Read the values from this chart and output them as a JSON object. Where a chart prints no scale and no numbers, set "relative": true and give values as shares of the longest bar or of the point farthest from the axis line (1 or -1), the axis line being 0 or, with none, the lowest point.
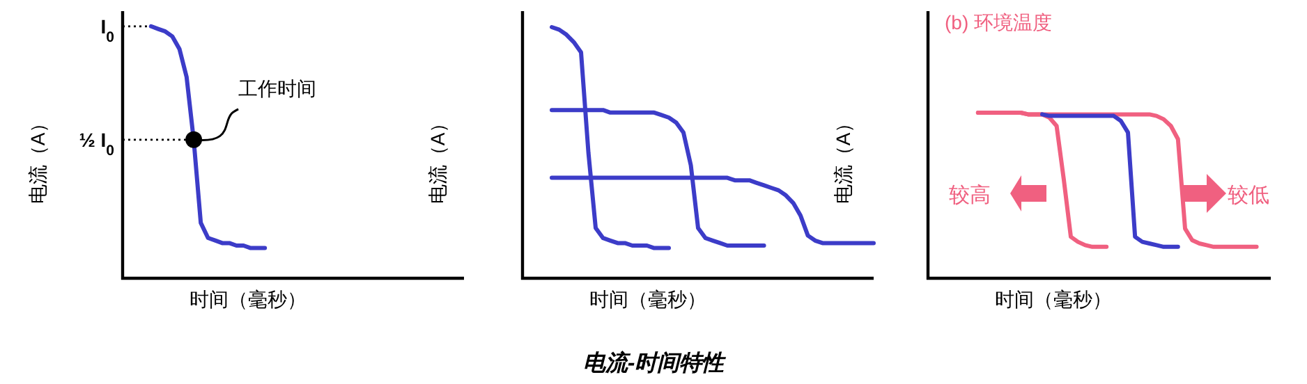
{
  "chart_data": [
    {
      "type": "line",
      "relative": true,
      "xlabel": "时间（毫秒）",
      "ylabel": "电流（A）",
      "marker": "none",
      "line_style": "solid",
      "categories": [
        null,
        null,
        null,
        null,
        null,
        null,
        null,
        null,
        null,
        null,
        null,
        null,
        null,
        null,
        null,
        null,
        null,
        null,
        null,
        null,
        null,
        null,
        null,
        null,
        null,
        null,
        null,
        null,
        null,
        null,
        null,
        null,
        null,
        null,
        null,
        null,
        null,
        null,
        null,
        null,
        null,
        null,
        null,
        null,
        null,
        null,
        null,
        null,
        null
      ],
      "series": [
        {
          "color": "#3c3cc8",
          "values": [
            null,
            null,
            null,
            null,
            1,
            0.99,
            0.98,
            0.96,
            0.91,
            0.8,
            0.55,
            0.22,
            0.16,
            0.15,
            0.14,
            0.14,
            0.13,
            0.13,
            0.12,
            0.12,
            0.12,
            null,
            null,
            null,
            null,
            null,
            null,
            null,
            null,
            null,
            null,
            null,
            null,
            null,
            null,
            null,
            null,
            null,
            null,
            null,
            null,
            null,
            null,
            null,
            null,
            null,
            null,
            null,
            null
          ]
        }
      ],
      "ref_lines": [
        {
          "axis": "y",
          "value": 1,
          "label": "I$_{0}$",
          "line_style": "dotted"
        },
        {
          "axis": "y",
          "value": 0.55,
          "label": "½ I$_{0}$",
          "line_style": "dotted"
        }
      ],
      "annotations": [
        "工作时间"
      ]
    },
    {
      "type": "line",
      "relative": true,
      "xlabel": "时间（毫秒）",
      "ylabel": "电流（A）",
      "marker": "none",
      "line_style": "solid",
      "categories": [
        null,
        null,
        null,
        null,
        null,
        null,
        null,
        null,
        null,
        null,
        null,
        null,
        null,
        null,
        null,
        null,
        null,
        null,
        null,
        null,
        null,
        null,
        null,
        null,
        null,
        null,
        null,
        null,
        null,
        null,
        null,
        null,
        null,
        null,
        null,
        null,
        null,
        null,
        null,
        null,
        null,
        null,
        null,
        null,
        null,
        null,
        null,
        null,
        null
      ],
      "series": [
        {
          "color": "#3c3cc8",
          "values": [
            null,
            null,
            null,
            null,
            1,
            0.99,
            0.97,
            0.94,
            0.9,
            0.5,
            0.2,
            0.16,
            0.15,
            0.14,
            0.14,
            0.13,
            0.13,
            0.13,
            0.12,
            0.12,
            0.12,
            null,
            null,
            null,
            null,
            null,
            null,
            null,
            null,
            null,
            null,
            null,
            null,
            null,
            null,
            null,
            null,
            null,
            null,
            null,
            null,
            null,
            null,
            null,
            null,
            null,
            null,
            null,
            null
          ]
        },
        {
          "color": "#3c3cc8",
          "values": [
            null,
            null,
            null,
            null,
            0.67,
            0.67,
            0.67,
            0.67,
            0.67,
            0.67,
            0.67,
            0.67,
            0.66,
            0.66,
            0.66,
            0.66,
            0.66,
            0.66,
            0.66,
            0.65,
            0.64,
            0.62,
            0.58,
            0.45,
            0.2,
            0.16,
            0.15,
            0.14,
            0.13,
            0.13,
            0.13,
            0.13,
            0.13,
            0.13,
            null,
            null,
            null,
            null,
            null,
            null,
            null,
            null,
            null,
            null,
            null,
            null,
            null,
            null,
            null
          ]
        },
        {
          "color": "#3c3cc8",
          "values": [
            null,
            null,
            null,
            null,
            0.4,
            0.4,
            0.4,
            0.4,
            0.4,
            0.4,
            0.4,
            0.4,
            0.4,
            0.4,
            0.4,
            0.4,
            0.4,
            0.4,
            0.4,
            0.4,
            0.4,
            0.4,
            0.4,
            0.4,
            0.4,
            0.4,
            0.4,
            0.4,
            0.4,
            0.39,
            0.39,
            0.39,
            0.38,
            0.37,
            0.36,
            0.35,
            0.33,
            0.3,
            0.25,
            0.17,
            0.15,
            0.14,
            0.14,
            0.14,
            0.14,
            0.14,
            0.14,
            0.14,
            0.14
          ]
        }
      ],
      "annotations": [
        "电流-时间特性"
      ]
    },
    {
      "type": "line",
      "relative": true,
      "title": "(b) 环境温度",
      "xlabel": "时间（毫秒）",
      "ylabel": "电流（A）",
      "marker": "none",
      "line_style": "solid",
      "categories": [
        null,
        null,
        null,
        null,
        null,
        null,
        null,
        null,
        null,
        null,
        null,
        null,
        null,
        null,
        null,
        null,
        null,
        null,
        null,
        null,
        null,
        null,
        null,
        null,
        null,
        null,
        null,
        null,
        null,
        null,
        null,
        null,
        null,
        null,
        null,
        null,
        null,
        null,
        null,
        null,
        null,
        null,
        null,
        null,
        null,
        null,
        null,
        null,
        null
      ],
      "series": [
        {
          "color": "#f06080",
          "values": [
            null,
            null,
            null,
            null,
            null,
            null,
            null,
            1,
            1,
            1,
            1,
            1,
            1,
            1,
            0.99,
            0.99,
            0.99,
            0.97,
            0.92,
            0.6,
            0.25,
            0.22,
            0.2,
            0.19,
            0.19,
            0.19,
            null,
            null,
            null,
            null,
            null,
            null,
            null,
            null,
            null,
            null,
            null,
            null,
            null,
            null,
            null,
            null,
            null,
            null,
            null,
            null,
            null,
            null,
            null
          ]
        },
        {
          "color": "#f06080",
          "values": [
            null,
            null,
            null,
            null,
            null,
            null,
            null,
            1,
            1,
            1,
            1,
            1,
            1,
            1,
            0.99,
            0.99,
            0.99,
            0.99,
            0.99,
            0.99,
            0.99,
            0.99,
            0.99,
            0.99,
            0.99,
            0.99,
            0.99,
            0.99,
            0.99,
            0.99,
            0.99,
            0.99,
            0.98,
            0.96,
            0.92,
            0.84,
            0.3,
            0.23,
            0.21,
            0.2,
            0.19,
            0.19,
            0.19,
            0.19,
            0.19,
            0.19,
            0.19,
            null,
            null
          ]
        },
        {
          "color": "#3c3cc8",
          "values": [
            null,
            null,
            null,
            null,
            null,
            null,
            null,
            null,
            null,
            null,
            null,
            null,
            null,
            null,
            null,
            null,
            0.99,
            0.98,
            0.98,
            0.98,
            0.98,
            0.98,
            0.98,
            0.98,
            0.98,
            0.98,
            0.98,
            0.95,
            0.88,
            0.25,
            0.22,
            0.21,
            0.2,
            0.19,
            0.19,
            0.19,
            null,
            null,
            null,
            null,
            null,
            null,
            null,
            null,
            null,
            null,
            null,
            null,
            null
          ]
        }
      ],
      "annotations": [
        "较高",
        "较低"
      ]
    }
  ]
}
